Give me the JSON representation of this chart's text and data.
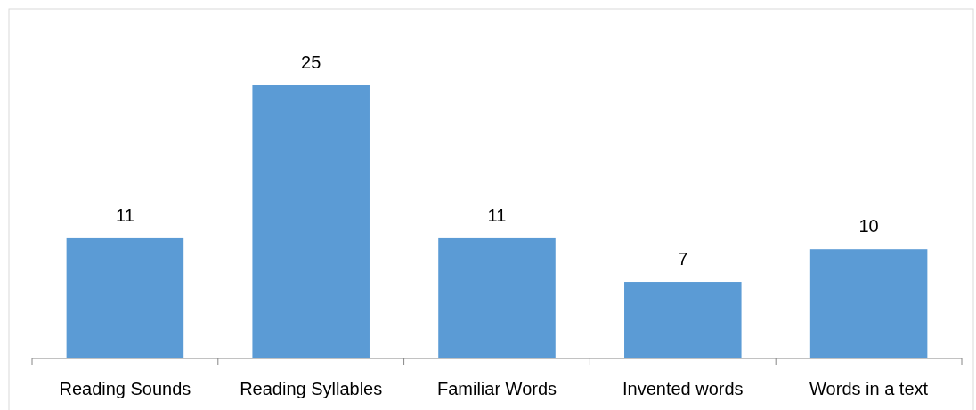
{
  "chart_data": {
    "type": "bar",
    "categories": [
      "Reading Sounds",
      "Reading Syllables",
      "Familiar Words",
      "Invented words",
      "Words in a text"
    ],
    "values": [
      11,
      25,
      11,
      7,
      10
    ],
    "color": "#5b9bd5",
    "data_labels": true
  }
}
